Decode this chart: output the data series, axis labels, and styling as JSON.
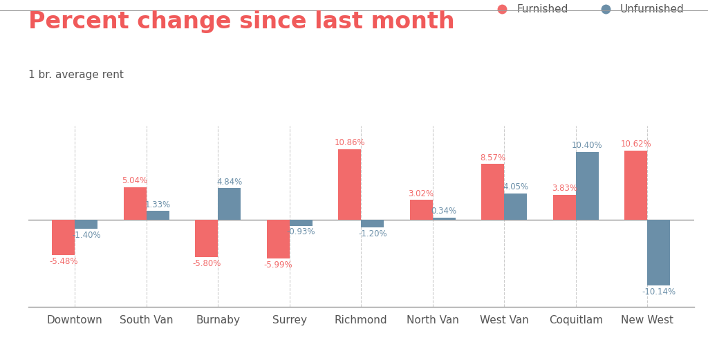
{
  "title": "Percent change since last month",
  "subtitle": "1 br. average rent",
  "title_color": "#f05a5a",
  "subtitle_color": "#555555",
  "furnished_color": "#f26b6b",
  "unfurnished_color": "#6b8fa8",
  "background_color": "#ffffff",
  "categories": [
    "Downtown",
    "South Van",
    "Burnaby",
    "Surrey",
    "Richmond",
    "North Van",
    "West Van",
    "Coquitlam",
    "New West"
  ],
  "furnished": [
    -5.48,
    5.04,
    -5.8,
    -5.99,
    10.86,
    3.02,
    8.57,
    3.83,
    10.62
  ],
  "unfurnished": [
    -1.4,
    1.33,
    4.84,
    -0.93,
    -1.2,
    0.34,
    4.05,
    10.4,
    -10.14
  ],
  "ylim": [
    -13.5,
    14.5
  ],
  "legend_furnished": "Furnished",
  "legend_unfurnished": "Unfurnished",
  "bar_width": 0.32,
  "dpi": 100,
  "figsize": [
    10.24,
    5.05
  ],
  "grid_color": "#cccccc",
  "axis_line_color": "#999999",
  "tick_color": "#555555",
  "title_fontsize": 24,
  "subtitle_fontsize": 11,
  "value_fontsize": 8.5,
  "legend_fontsize": 11,
  "xtick_fontsize": 11
}
